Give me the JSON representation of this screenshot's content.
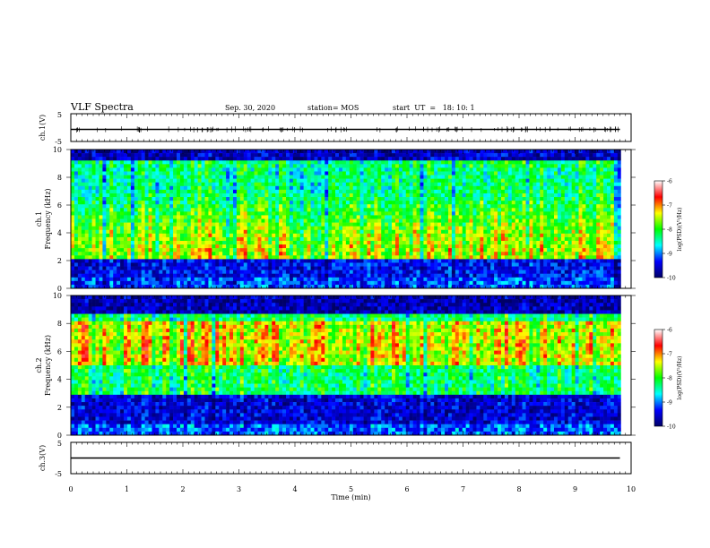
{
  "header": {
    "title": "VLF Spectra",
    "date": "Sep. 30, 2020",
    "station": "station= MOS",
    "start_ut": "start  UT  =   18: 10: 1"
  },
  "colors": {
    "colormap": [
      "#000066",
      "#0000ff",
      "#00ffff",
      "#00ff00",
      "#ffff00",
      "#ff0000",
      "#ffffff"
    ]
  },
  "chart_data": [
    {
      "type": "line",
      "panel": "ch1-waveform",
      "ylabel": "ch.1(V)",
      "ylim": [
        -5,
        5
      ],
      "yticks": [
        "5",
        "-5"
      ],
      "series": [
        {
          "x": [
            0,
            9.8
          ],
          "values": [
            0,
            0
          ]
        }
      ]
    },
    {
      "type": "heatmap",
      "panel": "ch1-spectrogram",
      "ylabel": "ch.1\nFrequency (kHz)",
      "ylabel_line1": "ch.1",
      "ylabel_line2": "Frequency (kHz)",
      "ylim": [
        0,
        10
      ],
      "yticks": [
        "0",
        "2",
        "4",
        "6",
        "8",
        "10"
      ],
      "colorbar": {
        "label": "log(PSD)(V²/Hz)",
        "range": [
          -10,
          -6
        ],
        "ticks": [
          "-6",
          "-7",
          "-8",
          "-9",
          "-10"
        ]
      }
    },
    {
      "type": "heatmap",
      "panel": "ch2-spectrogram",
      "ylabel": "ch.2\nFrequency (kHz)",
      "ylabel_line1": "ch.2",
      "ylabel_line2": "Frequency (kHz)",
      "ylim": [
        0,
        10
      ],
      "yticks": [
        "0",
        "2",
        "4",
        "6",
        "8",
        "10"
      ],
      "colorbar": {
        "label": "log(PSD)(V²/Hz)",
        "range": [
          -10,
          -6
        ],
        "ticks": [
          "-6",
          "-7",
          "-8",
          "-9",
          "-10"
        ]
      }
    },
    {
      "type": "line",
      "panel": "ch3-waveform",
      "ylabel": "ch.3(V)",
      "ylim": [
        -5,
        5
      ],
      "yticks": [
        "5",
        "-5"
      ],
      "series": [
        {
          "x": [
            0,
            9.8
          ],
          "values": [
            0,
            0
          ]
        }
      ]
    }
  ],
  "xaxis": {
    "label": "Time  (min)",
    "xlim": [
      0,
      10
    ],
    "ticks": [
      "0",
      "1",
      "2",
      "3",
      "4",
      "5",
      "6",
      "7",
      "8",
      "9",
      "10"
    ]
  }
}
